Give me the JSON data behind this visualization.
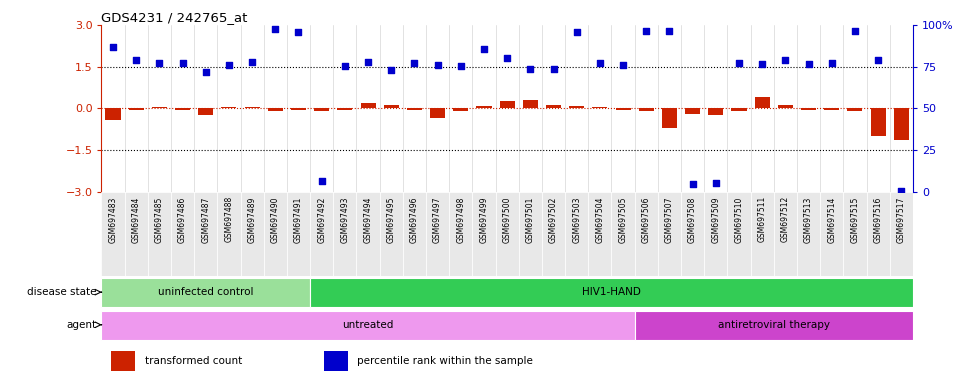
{
  "title": "GDS4231 / 242765_at",
  "samples": [
    "GSM697483",
    "GSM697484",
    "GSM697485",
    "GSM697486",
    "GSM697487",
    "GSM697488",
    "GSM697489",
    "GSM697490",
    "GSM697491",
    "GSM697492",
    "GSM697493",
    "GSM697494",
    "GSM697495",
    "GSM697496",
    "GSM697497",
    "GSM697498",
    "GSM697499",
    "GSM697500",
    "GSM697501",
    "GSM697502",
    "GSM697503",
    "GSM697504",
    "GSM697505",
    "GSM697506",
    "GSM697507",
    "GSM697508",
    "GSM697509",
    "GSM697510",
    "GSM697511",
    "GSM697512",
    "GSM697513",
    "GSM697514",
    "GSM697515",
    "GSM697516",
    "GSM697517"
  ],
  "red_bars": [
    -0.42,
    -0.06,
    0.06,
    -0.04,
    -0.25,
    0.04,
    0.06,
    -0.08,
    -0.05,
    -0.08,
    -0.04,
    0.18,
    0.12,
    -0.06,
    -0.35,
    -0.08,
    0.08,
    0.28,
    0.32,
    0.14,
    0.08,
    0.06,
    -0.06,
    -0.08,
    -0.7,
    -0.2,
    -0.22,
    -0.08,
    0.4,
    0.14,
    -0.06,
    -0.06,
    -0.08,
    -1.0,
    -1.15
  ],
  "blue_dots": [
    2.2,
    1.75,
    1.63,
    1.65,
    1.3,
    1.55,
    1.68,
    2.85,
    2.75,
    -2.62,
    1.53,
    1.68,
    1.38,
    1.65,
    1.55,
    1.53,
    2.15,
    1.8,
    1.42,
    1.42,
    2.73,
    1.63,
    1.55,
    2.78,
    2.78,
    -2.72,
    -2.68,
    1.65,
    1.58,
    1.75,
    1.6,
    1.62,
    2.77,
    1.73,
    -2.97
  ],
  "disease_state_groups": [
    {
      "label": "uninfected control",
      "start": 0,
      "end": 8,
      "color": "#9AE09A"
    },
    {
      "label": "HIV1-HAND",
      "start": 9,
      "end": 34,
      "color": "#33CC55"
    }
  ],
  "agent_groups": [
    {
      "label": "untreated",
      "start": 0,
      "end": 22,
      "color": "#EE99EE"
    },
    {
      "label": "antiretroviral therapy",
      "start": 23,
      "end": 34,
      "color": "#CC44CC"
    }
  ],
  "ylim": [
    -3,
    3
  ],
  "yticks_left": [
    -3,
    -1.5,
    0,
    1.5,
    3
  ],
  "yticks_right_labels": [
    "0",
    "25",
    "50",
    "75",
    "100%"
  ],
  "hlines_dotted": [
    1.5,
    -1.5
  ],
  "hline_red": 0,
  "bar_color": "#CC2200",
  "dot_color": "#0000CC",
  "bar_width": 0.65,
  "label_ds": "disease state",
  "label_ag": "agent",
  "legend_items": [
    {
      "color": "#CC2200",
      "label": "transformed count"
    },
    {
      "color": "#0000CC",
      "label": "percentile rank within the sample"
    }
  ]
}
